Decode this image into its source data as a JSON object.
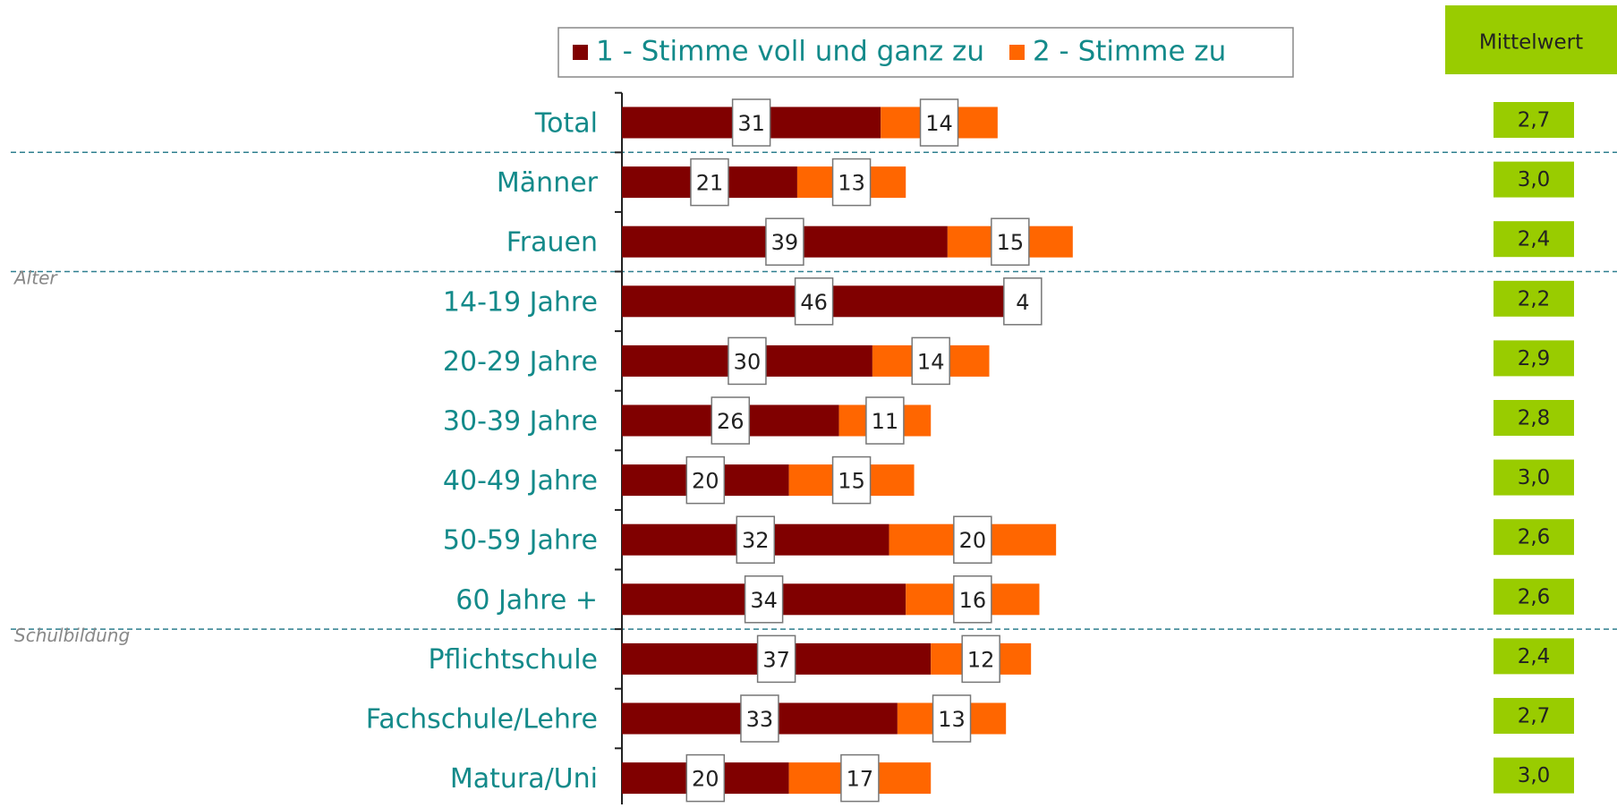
{
  "chart_data": {
    "type": "stacked-bar-horizontal",
    "categories": [
      "Total",
      "Männer",
      "Frauen",
      "14-19 Jahre",
      "20-29 Jahre",
      "30-39 Jahre",
      "40-49 Jahre",
      "50-59 Jahre",
      "60 Jahre +",
      "Pflichtschule",
      "Fachschule/Lehre",
      "Matura/Uni"
    ],
    "series": [
      {
        "name": "1 - Stimme voll und ganz zu",
        "color": "#800000",
        "values": [
          31,
          21,
          39,
          46,
          30,
          26,
          20,
          32,
          34,
          37,
          33,
          20
        ]
      },
      {
        "name": "2 - Stimme zu",
        "color": "#ff6600",
        "values": [
          14,
          13,
          15,
          4,
          14,
          11,
          15,
          20,
          16,
          12,
          13,
          17
        ]
      }
    ],
    "xlim": [
      0,
      100
    ],
    "group_labels": [
      "Alter",
      "Schulbildung"
    ],
    "mittelwert": {
      "title": "Mittelwert",
      "color": "#99cc00",
      "values": [
        2.7,
        3.0,
        2.4,
        2.2,
        2.9,
        2.8,
        3.0,
        2.6,
        2.6,
        2.4,
        2.7,
        3.0
      ],
      "value_labels": [
        "2,7",
        "3,0",
        "2,4",
        "2,2",
        "2,9",
        "2,8",
        "3,0",
        "2,6",
        "2,6",
        "2,4",
        "2,7",
        "3,0"
      ]
    }
  }
}
